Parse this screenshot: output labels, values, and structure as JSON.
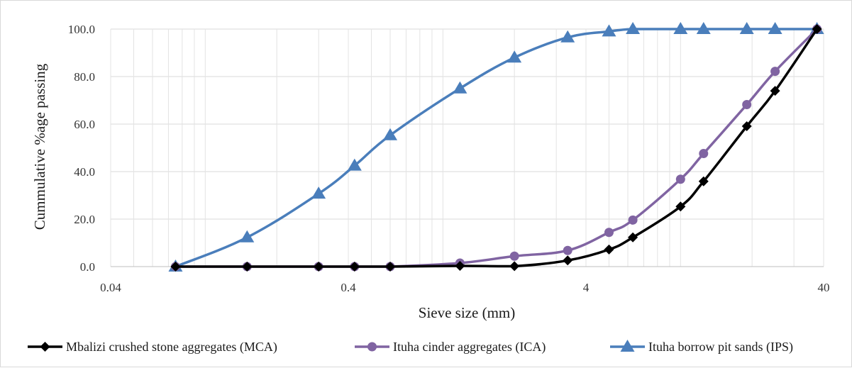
{
  "chart_data": {
    "type": "line",
    "xlabel": "Sieve size (mm)",
    "ylabel": "Cummulative %age passing",
    "x_scale": "log",
    "xlim": [
      0.04,
      40
    ],
    "ylim": [
      0,
      100
    ],
    "x_ticks": [
      0.04,
      0.4,
      4,
      40
    ],
    "x_tick_labels": [
      "0.04",
      "0.4",
      "4",
      "40"
    ],
    "y_ticks": [
      0,
      20,
      40,
      60,
      80,
      100
    ],
    "y_tick_labels": [
      "0.0",
      "20.0",
      "40.0",
      "60.0",
      "80.0",
      "100.0"
    ],
    "grid": true,
    "legend_position": "bottom",
    "series": [
      {
        "name": "Mbalizi crushed stone aggregates (MCA)",
        "color": "#000000",
        "marker": "diamond",
        "x": [
          0.075,
          0.15,
          0.3,
          0.425,
          0.6,
          1.18,
          2.0,
          3.35,
          5.0,
          6.3,
          10.0,
          12.5,
          19.0,
          25.0,
          37.5
        ],
        "y": [
          0.0,
          0.0,
          0.0,
          0.0,
          0.0,
          0.3,
          0.2,
          2.6,
          7.2,
          12.3,
          25.3,
          35.9,
          59.1,
          74.0,
          100.0
        ]
      },
      {
        "name": "Ituha cinder aggregates (ICA)",
        "color": "#8064a2",
        "marker": "circle",
        "x": [
          0.075,
          0.15,
          0.3,
          0.425,
          0.6,
          1.18,
          2.0,
          3.35,
          5.0,
          6.3,
          10.0,
          12.5,
          19.0,
          25.0,
          37.5
        ],
        "y": [
          0.0,
          0.0,
          0.0,
          0.0,
          0.0,
          1.5,
          4.4,
          6.8,
          14.4,
          19.6,
          36.8,
          47.6,
          68.2,
          82.2,
          100.0
        ]
      },
      {
        "name": "Ituha borrow pit sands (IPS)",
        "color": "#4a7ebb",
        "marker": "triangle",
        "x": [
          0.075,
          0.15,
          0.3,
          0.425,
          0.6,
          1.18,
          2.0,
          3.35,
          5.0,
          6.3,
          10.0,
          12.5,
          19.0,
          25.0,
          37.5
        ],
        "y": [
          0.0,
          12.3,
          30.7,
          42.5,
          55.3,
          75.0,
          88.0,
          96.5,
          99.0,
          100.0,
          100.0,
          100.0,
          100.0,
          100.0,
          100.0
        ]
      }
    ]
  }
}
